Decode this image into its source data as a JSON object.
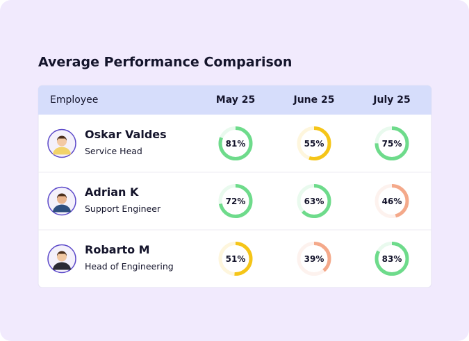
{
  "title": "Average Performance Comparison",
  "table": {
    "columns": [
      "Employee",
      "May 25",
      "June 25",
      "July 25"
    ],
    "rows": [
      {
        "name": "Oskar Valdes",
        "role": "Service Head",
        "cells": [
          {
            "value": 81,
            "label": "81%",
            "color": "#6edb8b"
          },
          {
            "value": 55,
            "label": "55%",
            "color": "#f5c518"
          },
          {
            "value": 75,
            "label": "75%",
            "color": "#6edb8b"
          }
        ]
      },
      {
        "name": "Adrian K",
        "role": "Support Engineer",
        "cells": [
          {
            "value": 72,
            "label": "72%",
            "color": "#6edb8b"
          },
          {
            "value": 63,
            "label": "63%",
            "color": "#6edb8b"
          },
          {
            "value": 46,
            "label": "46%",
            "color": "#f4a98a"
          }
        ]
      },
      {
        "name": "Robarto M",
        "role": "Head of Engineering",
        "cells": [
          {
            "value": 51,
            "label": "51%",
            "color": "#f5c518"
          },
          {
            "value": 39,
            "label": "39%",
            "color": "#f4a98a"
          },
          {
            "value": 83,
            "label": "83%",
            "color": "#6edb8b"
          }
        ]
      }
    ]
  }
}
